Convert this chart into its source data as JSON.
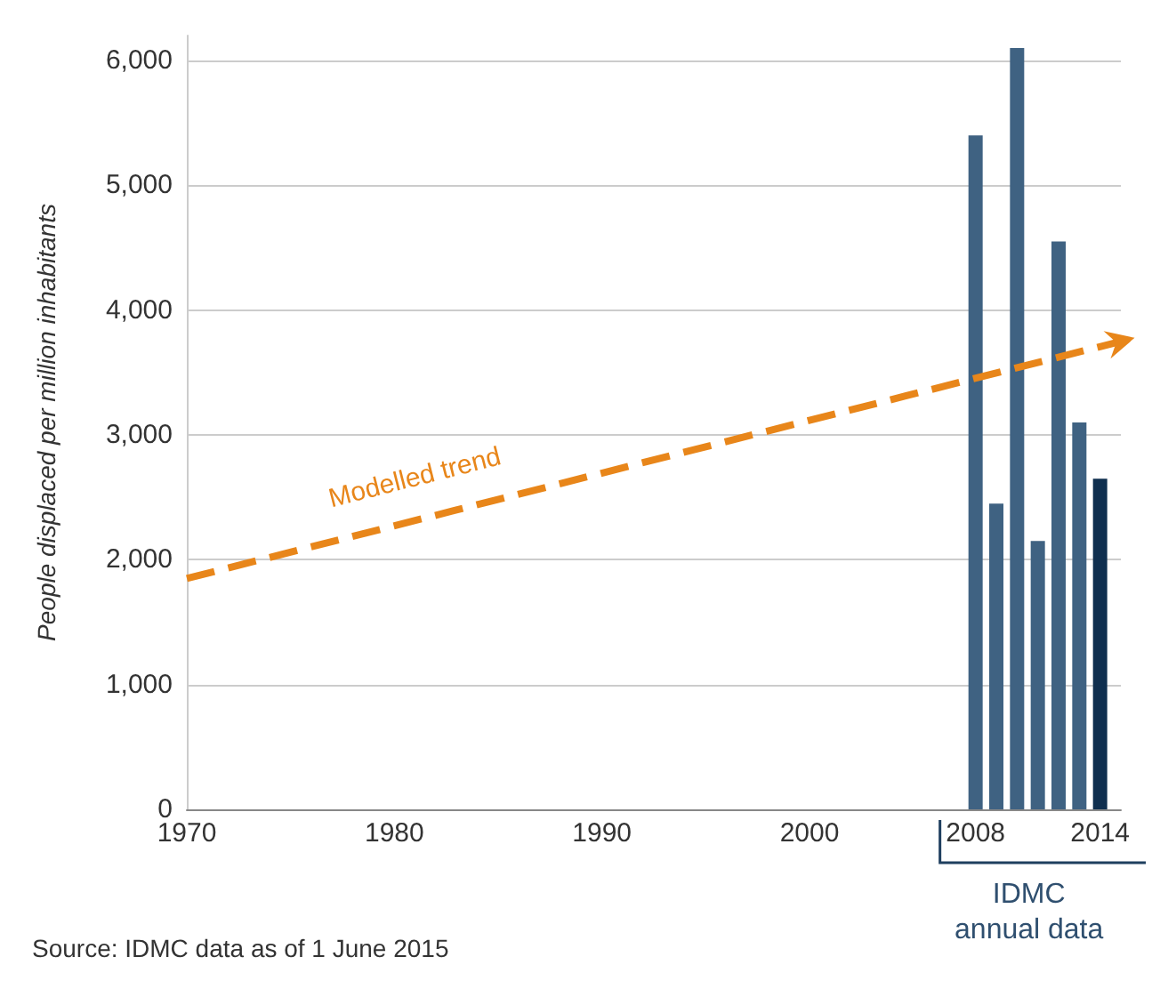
{
  "chart_data": {
    "type": "bar",
    "ylabel": "People displaced per million inhabitants",
    "series": [
      {
        "x": [
          2008,
          2009,
          2010,
          2011,
          2012,
          2013,
          2014
        ],
        "values": [
          5400,
          2450,
          6100,
          2150,
          4550,
          3100,
          2650
        ],
        "colors": [
          "#3f6282",
          "#3f6282",
          "#3f6282",
          "#3f6282",
          "#3f6282",
          "#3f6282",
          "#0f2f4f"
        ]
      },
      {
        "type": "line",
        "name": "Modelled trend",
        "color": "#e8861a",
        "x": [
          1970,
          2015
        ],
        "values": [
          1850,
          3750
        ],
        "line_style": "dashed"
      }
    ],
    "xlim": [
      1970,
      2015
    ],
    "xticks": [
      1970,
      1980,
      1990,
      2000,
      2008,
      2014
    ],
    "ylim": [
      0,
      6200
    ],
    "yticks": [
      0,
      {
        "value": 1000,
        "label": "1,000"
      },
      {
        "value": 2000,
        "label": "2,000"
      },
      {
        "value": 3000,
        "label": "3,000"
      },
      {
        "value": 4000,
        "label": "4,000"
      },
      {
        "value": 5000,
        "label": "5,000"
      },
      {
        "value": 6000,
        "label": "6,000"
      }
    ],
    "grid": "y",
    "legend": false,
    "annotations": [
      "IDMC annual data",
      "Source: IDMC data as of 1 June 2015"
    ]
  }
}
